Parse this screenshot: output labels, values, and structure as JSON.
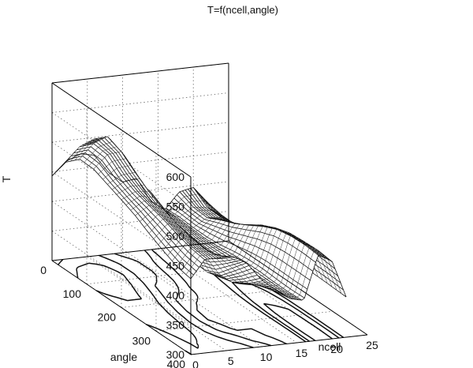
{
  "chart_data": {
    "type": "surface",
    "title": "T=f(ncell,angle)",
    "xlabel": "ncell",
    "ylabel": "angle",
    "zlabel": "T",
    "xlim": [
      0,
      25
    ],
    "ylim": [
      0,
      400
    ],
    "zlim": [
      300,
      600
    ],
    "xticks": [
      "0",
      "5",
      "10",
      "15",
      "20",
      "25"
    ],
    "yticks": [
      "0",
      "100",
      "200",
      "300",
      "400"
    ],
    "zticks": [
      "300",
      "350",
      "400",
      "450",
      "500",
      "550",
      "600"
    ],
    "grid": true,
    "contour_projection": "floor",
    "surface": {
      "ncell": [
        0,
        2,
        4,
        6,
        8,
        10,
        12,
        14,
        16,
        18,
        20,
        22
      ],
      "angle": [
        0,
        40,
        80,
        120,
        160,
        200,
        240,
        280,
        320,
        360,
        400
      ],
      "T": [
        [
          443,
          465,
          475,
          470,
          438,
          419,
          423,
          381,
          365,
          392,
          397,
          369
        ],
        [
          482,
          506,
          516,
          493,
          451,
          434,
          404,
          375,
          367,
          382,
          379,
          364
        ],
        [
          503,
          527,
          536,
          503,
          450,
          436,
          393,
          372,
          365,
          380,
          378,
          363
        ],
        [
          502,
          524,
          526,
          487,
          437,
          422,
          386,
          367,
          364,
          392,
          384,
          364
        ],
        [
          492,
          505,
          507,
          466,
          417,
          401,
          378,
          365,
          366,
          402,
          396,
          366
        ],
        [
          482,
          493,
          490,
          444,
          397,
          383,
          375,
          363,
          370,
          415,
          413,
          368
        ],
        [
          471,
          486,
          476,
          430,
          384,
          373,
          375,
          365,
          372,
          429,
          424,
          370
        ],
        [
          457,
          479,
          467,
          423,
          382,
          370,
          376,
          367,
          372,
          440,
          431,
          370
        ],
        [
          444,
          470,
          460,
          427,
          393,
          376,
          379,
          369,
          370,
          445,
          433,
          370
        ],
        [
          433,
          462,
          457,
          441,
          418,
          392,
          383,
          372,
          369,
          446,
          434,
          369
        ],
        [
          428,
          458,
          458,
          458,
          443,
          413,
          394,
          376,
          370,
          444,
          431,
          368
        ]
      ]
    }
  }
}
